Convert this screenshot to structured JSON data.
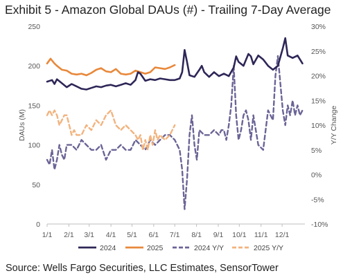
{
  "chart_data": {
    "type": "line",
    "title": "Exhibit 5 - Amazon Global DAUs (#) - Trailing 7-Day Average",
    "source": "Source: Wells Fargo Securities, LLC Estimates, SensorTower",
    "ylabel": "DAUs (M)",
    "y2label": "Y/Y Change",
    "ylim": [
      0,
      250
    ],
    "y2lim": [
      -10,
      30
    ],
    "y_ticks": [
      "0",
      "50",
      "100",
      "150",
      "200",
      "250"
    ],
    "y2_ticks": [
      "-10%",
      "-5%",
      "0%",
      "5%",
      "10%",
      "15%",
      "20%",
      "25%",
      "30%"
    ],
    "x_ticks": [
      "1/1",
      "2/1",
      "3/1",
      "4/1",
      "5/1",
      "6/1",
      "7/1",
      "8/1",
      "9/1",
      "10/1",
      "11/1",
      "12/1"
    ],
    "x_unit": "week of year (0 = Jan 1)",
    "xlim": [
      0,
      52.5
    ],
    "grid": false,
    "legend_position": "bottom",
    "series": [
      {
        "name": "2024",
        "axis": "left",
        "style": "solid",
        "color": "#2e2657",
        "x": [
          0,
          1,
          1.5,
          2,
          3,
          4,
          5,
          6,
          7,
          8,
          9,
          10,
          11,
          12,
          13,
          14,
          15,
          16,
          17,
          18,
          18.5,
          19,
          20,
          21,
          22,
          23,
          24,
          25,
          26,
          27,
          27.5,
          28,
          28.5,
          29,
          30,
          31,
          31.5,
          32,
          33,
          34,
          35,
          36,
          37,
          38,
          38.5,
          39,
          40,
          41,
          41.5,
          42,
          43,
          44,
          45,
          46,
          47,
          48,
          48.5,
          49,
          50,
          51,
          52
        ],
        "y": [
          180,
          182,
          177,
          183,
          178,
          173,
          177,
          174,
          171,
          170,
          172,
          174,
          173,
          175,
          176,
          174,
          176,
          178,
          176,
          182,
          192,
          190,
          181,
          183,
          182,
          184,
          183,
          182,
          182,
          184,
          192,
          220,
          205,
          188,
          186,
          195,
          200,
          192,
          186,
          192,
          187,
          190,
          187,
          198,
          212,
          205,
          200,
          215,
          212,
          202,
          213,
          208,
          200,
          195,
          200,
          222,
          235,
          213,
          210,
          213,
          203
        ]
      },
      {
        "name": "2025",
        "axis": "left",
        "style": "solid",
        "color": "#e8883a",
        "x": [
          0,
          0.7,
          1.5,
          2,
          3,
          4,
          5,
          6,
          7,
          8,
          9,
          10,
          11,
          12,
          13,
          14,
          15,
          16,
          17,
          18,
          19,
          20,
          21,
          22,
          23,
          24,
          25,
          26
        ],
        "y": [
          203,
          209,
          203,
          200,
          195,
          194,
          190,
          189,
          190,
          188,
          191,
          195,
          197,
          193,
          192,
          196,
          190,
          189,
          190,
          194,
          192,
          190,
          192,
          198,
          197,
          196,
          198,
          201
        ]
      },
      {
        "name": "2024 Y/Y",
        "axis": "right",
        "style": "dashed",
        "color": "#6a6496",
        "x": [
          0,
          0.5,
          1,
          1.5,
          2,
          2.5,
          3,
          3.5,
          4,
          5,
          6,
          7,
          8,
          9,
          10,
          11,
          12,
          13,
          14,
          15,
          16,
          17,
          18,
          19,
          20,
          21,
          22,
          23,
          24,
          25,
          26,
          27,
          27.5,
          28,
          28.5,
          29,
          29.5,
          30,
          30.5,
          31,
          32,
          33,
          34,
          35,
          35.5,
          36,
          36.5,
          37,
          37.5,
          38,
          38.5,
          39,
          39.5,
          40,
          40.5,
          41,
          41.5,
          42,
          43,
          44,
          45,
          46,
          46.5,
          47,
          48,
          48.5,
          49,
          49.5,
          50,
          50.5,
          51,
          51.5,
          52
        ],
        "y": [
          3,
          2,
          5,
          1,
          3,
          6,
          4,
          3,
          6,
          6,
          5,
          7,
          6,
          5,
          5,
          6,
          3,
          5,
          5,
          6,
          5,
          5,
          7,
          6,
          5,
          7,
          6,
          7,
          8,
          8,
          7,
          5,
          1,
          -7,
          -1,
          8,
          12,
          6,
          3,
          9,
          8,
          8,
          9,
          8,
          9,
          9,
          7,
          10,
          14,
          22,
          12,
          7,
          9,
          12,
          13,
          11,
          7,
          12,
          6,
          5,
          13,
          11,
          20,
          24,
          13,
          10,
          14,
          12,
          15,
          12,
          14,
          12,
          13
        ]
      },
      {
        "name": "2025 Y/Y",
        "axis": "right",
        "style": "dashed",
        "color": "#f2b37e",
        "x": [
          0,
          0.5,
          1,
          1.5,
          2,
          2.5,
          3,
          3.5,
          4,
          4.5,
          5,
          5.5,
          6,
          7,
          8,
          9,
          10,
          11,
          12,
          13,
          14,
          15,
          16,
          17,
          18,
          18.5,
          19,
          19.5,
          20,
          20.5,
          21,
          21.5,
          22,
          22.5,
          23,
          24,
          25,
          26
        ],
        "y": [
          12,
          13,
          12,
          13,
          12,
          10,
          11,
          12,
          12,
          10,
          8,
          9,
          8,
          8,
          10,
          9,
          11,
          10,
          12,
          13,
          10,
          9,
          10,
          9,
          8,
          7,
          8,
          5,
          7,
          5,
          8,
          6,
          9,
          7,
          8,
          7,
          8,
          10
        ]
      }
    ]
  }
}
